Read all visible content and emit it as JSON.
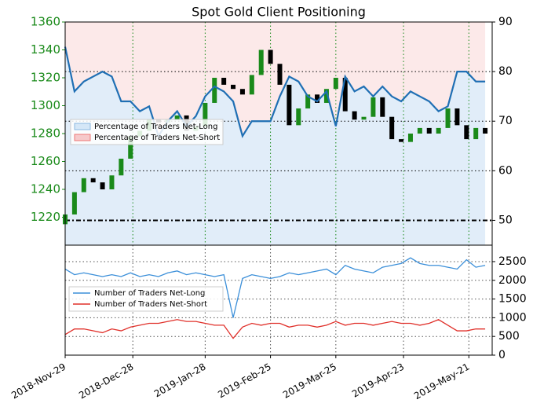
{
  "chart_data": [
    {
      "type": "candlestick",
      "title": "Spot Gold Client Positioning",
      "x": [
        "2018-11-29",
        "2018-12-03",
        "2018-12-07",
        "2018-12-11",
        "2018-12-15",
        "2018-12-19",
        "2018-12-23",
        "2018-12-27",
        "2018-12-31",
        "2019-01-04",
        "2019-01-08",
        "2019-01-12",
        "2019-01-16",
        "2019-01-20",
        "2019-01-24",
        "2019-01-28",
        "2019-02-01",
        "2019-02-05",
        "2019-02-09",
        "2019-02-13",
        "2019-02-17",
        "2019-02-21",
        "2019-02-25",
        "2019-03-01",
        "2019-03-05",
        "2019-03-09",
        "2019-03-13",
        "2019-03-17",
        "2019-03-21",
        "2019-03-25",
        "2019-03-29",
        "2019-04-02",
        "2019-04-06",
        "2019-04-10",
        "2019-04-14",
        "2019-04-18",
        "2019-04-22",
        "2019-04-26",
        "2019-04-30",
        "2019-05-04",
        "2019-05-08",
        "2019-05-12",
        "2019-05-16",
        "2019-05-20",
        "2019-05-24",
        "2019-05-28"
      ],
      "open": [
        1215,
        1222,
        1238,
        1248,
        1245,
        1240,
        1250,
        1262,
        1278,
        1282,
        1290,
        1288,
        1290,
        1293,
        1282,
        1285,
        1302,
        1320,
        1315,
        1312,
        1308,
        1322,
        1340,
        1330,
        1315,
        1286,
        1298,
        1308,
        1302,
        1312,
        1320,
        1296,
        1290,
        1292,
        1306,
        1292,
        1276,
        1274,
        1280,
        1284,
        1280,
        1284,
        1298,
        1286,
        1276,
        1284
      ],
      "close": [
        1222,
        1238,
        1248,
        1245,
        1240,
        1250,
        1262,
        1278,
        1282,
        1290,
        1288,
        1290,
        1293,
        1282,
        1285,
        1302,
        1320,
        1315,
        1312,
        1308,
        1322,
        1340,
        1330,
        1315,
        1286,
        1298,
        1308,
        1302,
        1312,
        1320,
        1296,
        1290,
        1292,
        1306,
        1292,
        1276,
        1274,
        1280,
        1284,
        1280,
        1284,
        1298,
        1286,
        1276,
        1284,
        1280
      ],
      "up_color": "#1a8a1a",
      "down_color": "#000000",
      "ylim": [
        1200,
        1360
      ],
      "yticks": [
        1220,
        1240,
        1260,
        1280,
        1300,
        1320,
        1340,
        1360
      ],
      "y2lim": [
        45,
        90
      ],
      "y2ticks": [
        50,
        60,
        70,
        80,
        90
      ],
      "series": [
        {
          "name": "Percentage of Traders Net-Long",
          "color": "#1f6fb4",
          "axis": "y2",
          "values": [
            85,
            76,
            78,
            79,
            80,
            79,
            74,
            74,
            72,
            73,
            67,
            70,
            72,
            69,
            71,
            75,
            77,
            76,
            74,
            67,
            70,
            70,
            70,
            75,
            79,
            78,
            75,
            74,
            76,
            69,
            79,
            76,
            77,
            75,
            77,
            75,
            74,
            76,
            75,
            74,
            72,
            73,
            80,
            80,
            78,
            78
          ]
        },
        {
          "name": "Percentage of Traders Net-Short",
          "color": "#f4a6a6"
        }
      ],
      "grid": true
    },
    {
      "type": "line",
      "ylim": [
        0,
        2940
      ],
      "yticks": [
        0,
        500,
        1000,
        1500,
        2000,
        2500
      ],
      "xlim": [
        "2018-11-29",
        "2019-05-31"
      ],
      "xticks": [
        "2018-Nov-29",
        "2018-Dec-28",
        "2019-Jan-28",
        "2019-Feb-25",
        "2019-Mar-25",
        "2019-Apr-23",
        "2019-May-21"
      ],
      "series": [
        {
          "name": "Number of Traders Net-Long",
          "color": "#3b8fd9",
          "values": [
            2300,
            2150,
            2200,
            2150,
            2100,
            2150,
            2100,
            2200,
            2100,
            2150,
            2100,
            2200,
            2250,
            2150,
            2200,
            2150,
            2100,
            2150,
            1000,
            2050,
            2150,
            2100,
            2050,
            2100,
            2200,
            2150,
            2200,
            2250,
            2300,
            2150,
            2400,
            2300,
            2250,
            2200,
            2350,
            2400,
            2450,
            2600,
            2450,
            2400,
            2400,
            2350,
            2300,
            2550,
            2350,
            2400
          ]
        },
        {
          "name": "Number of Traders Net-Short",
          "color": "#e0302a",
          "values": [
            550,
            700,
            700,
            650,
            600,
            700,
            650,
            750,
            800,
            850,
            850,
            900,
            950,
            900,
            900,
            850,
            800,
            800,
            450,
            750,
            850,
            800,
            850,
            850,
            750,
            800,
            800,
            750,
            800,
            900,
            800,
            850,
            850,
            800,
            850,
            900,
            850,
            850,
            800,
            850,
            950,
            800,
            650,
            650,
            700,
            700
          ]
        }
      ],
      "grid": true
    }
  ]
}
